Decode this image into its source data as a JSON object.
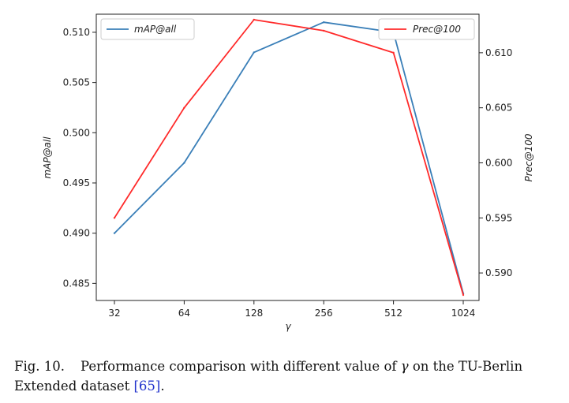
{
  "chart_data": {
    "type": "line",
    "categories": [
      "32",
      "64",
      "128",
      "256",
      "512",
      "1024"
    ],
    "xlabel": "γ",
    "ylabel_left": "mAP@all",
    "ylabel_right": "Prec@100",
    "ylim_left": [
      0.4833,
      0.5118
    ],
    "ylim_right": [
      0.5875,
      0.6135
    ],
    "yticks_left": [
      "0.485",
      "0.490",
      "0.495",
      "0.500",
      "0.505",
      "0.510"
    ],
    "yticks_right": [
      "0.590",
      "0.595",
      "0.600",
      "0.605",
      "0.610"
    ],
    "series": [
      {
        "name": "mAP@all",
        "axis": "left",
        "color": "#3a7fb8",
        "values": [
          0.49,
          0.497,
          0.508,
          0.511,
          0.51,
          0.484
        ]
      },
      {
        "name": "Prec@100",
        "axis": "right",
        "color": "#ff2a2a",
        "values": [
          0.595,
          0.605,
          0.613,
          0.612,
          0.61,
          0.588
        ]
      }
    ],
    "legend": [
      {
        "label": "mAP@all",
        "placement": "top-left"
      },
      {
        "label": "Prec@100",
        "placement": "top-right"
      }
    ]
  },
  "caption": {
    "label": "Fig. 10.",
    "text_before": "Performance comparison with different value of ",
    "symbol": "γ",
    "text_after": " on the TU-Berlin Extended dataset ",
    "reference": "[65]",
    "end": "."
  }
}
